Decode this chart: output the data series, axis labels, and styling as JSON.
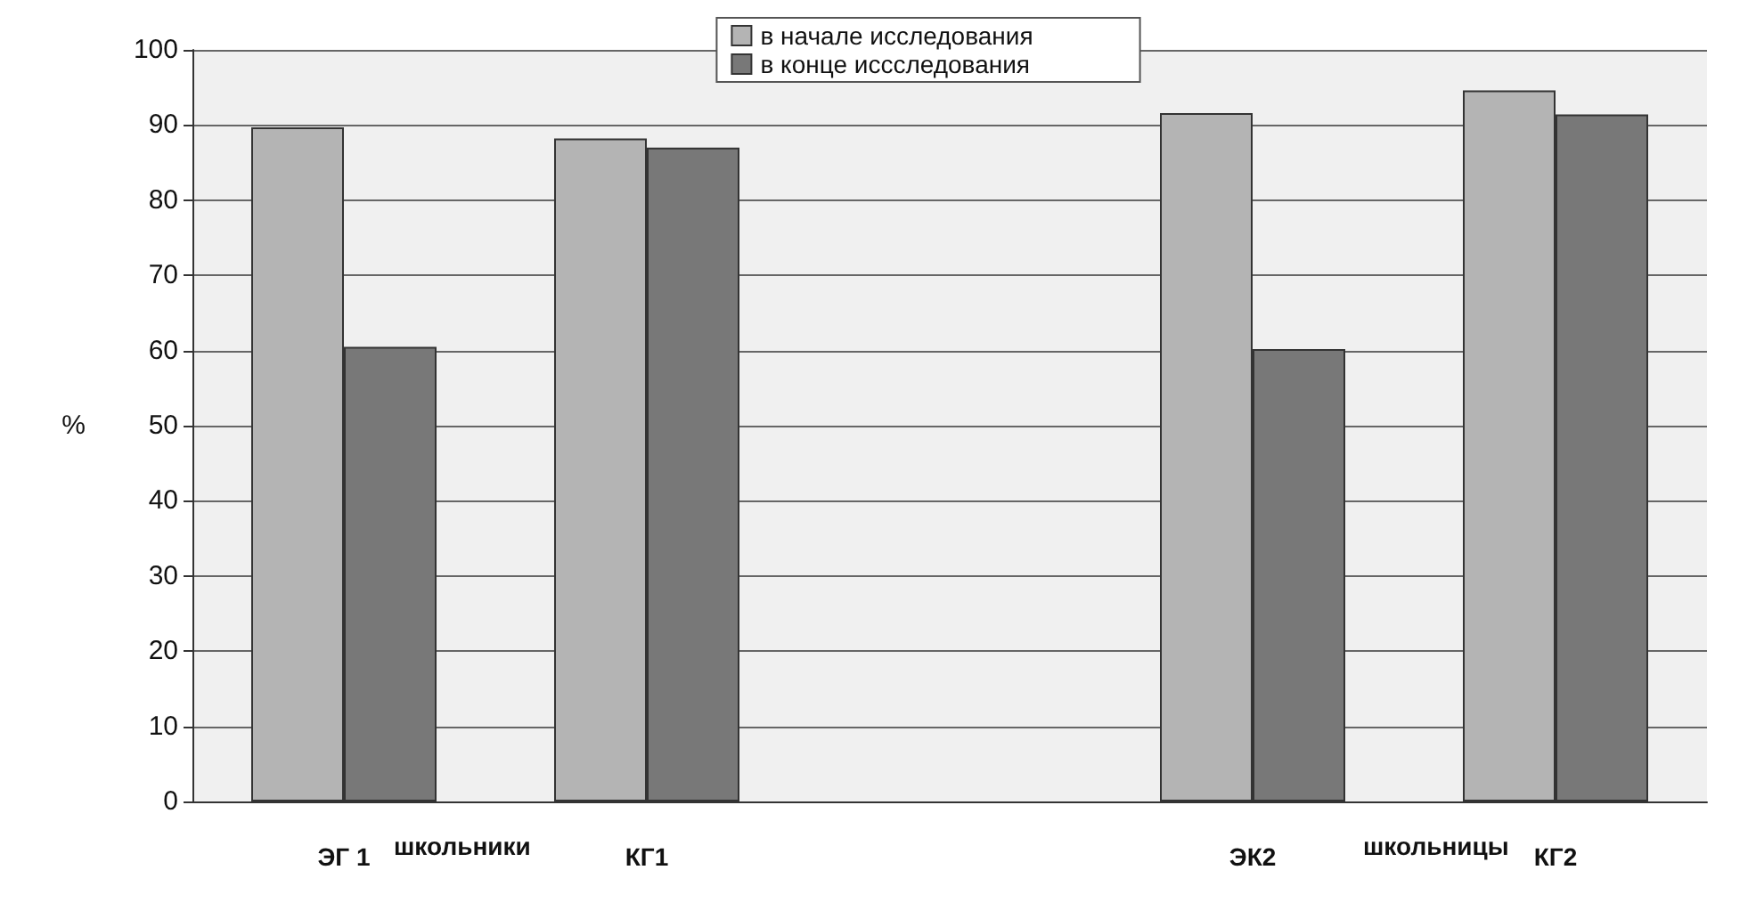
{
  "chart_data": {
    "type": "bar",
    "ylabel": "%",
    "categories": [
      "ЭГ 1",
      "КГ1",
      null,
      "ЭК2",
      "КГ2"
    ],
    "series": [
      {
        "name": "в начале исследования",
        "color": "#b4b4b4",
        "values": [
          89.7,
          88.2,
          null,
          91.6,
          94.6
        ]
      },
      {
        "name": "в конце иссследования",
        "color": "#787878",
        "values": [
          60.5,
          87,
          null,
          60.2,
          91.4
        ]
      }
    ],
    "ylim": [
      0,
      100
    ],
    "yticks": [
      0,
      10,
      20,
      30,
      40,
      50,
      60,
      70,
      80,
      90,
      100
    ],
    "grid": "y",
    "legend": "top",
    "annotations": [
      "школьники",
      "школьницы"
    ]
  }
}
